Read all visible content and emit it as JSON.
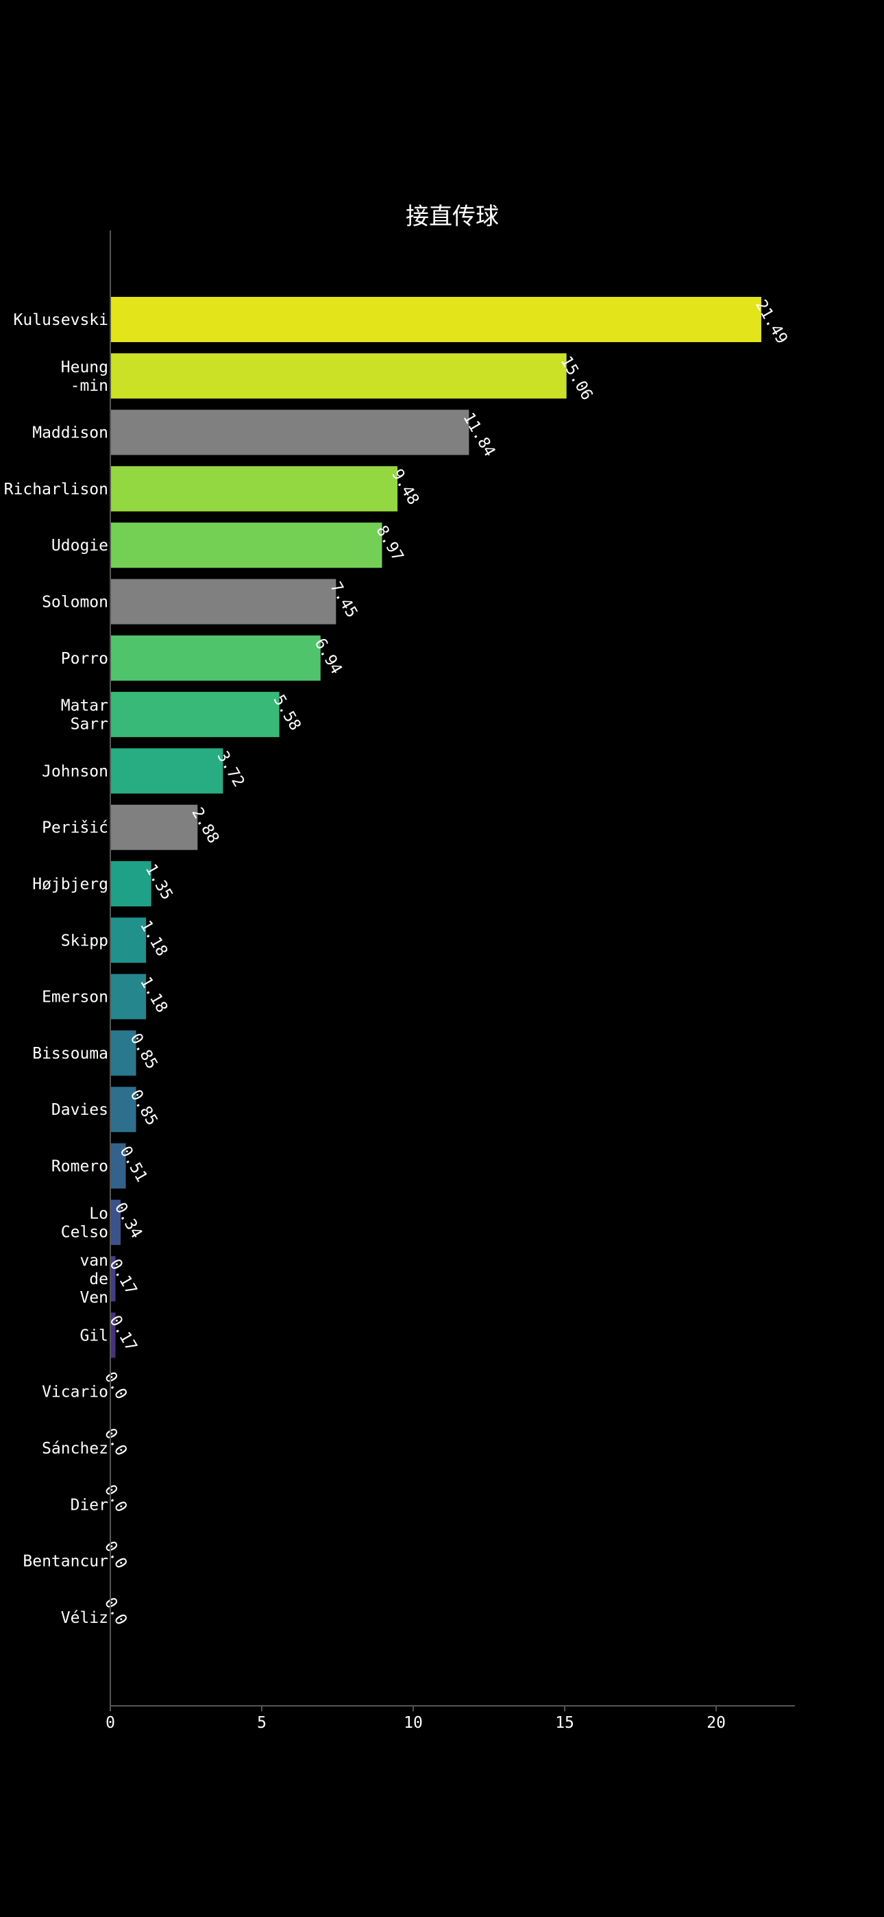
{
  "chart_data": {
    "type": "bar",
    "orientation": "horizontal",
    "title": "接直传球",
    "xlabel": "",
    "ylabel": "",
    "xlim": [
      0,
      22.6
    ],
    "x_ticks": [
      0,
      5,
      10,
      15,
      20
    ],
    "grid": false,
    "legend": "none",
    "background": "#000000",
    "categories": [
      "Kulusevski",
      "Heung\n-min",
      "Maddison",
      "Richarlison",
      "Udogie",
      "Solomon",
      "Porro",
      "Matar\nSarr",
      "Johnson",
      "Perišić",
      "Højbjerg",
      "Skipp",
      "Emerson",
      "Bissouma",
      "Davies",
      "Romero",
      "Lo\nCelso",
      "van\nde\nVen",
      "Gil",
      "Vicario",
      "Sánchez",
      "Dier",
      "Bentancur",
      "Véliz"
    ],
    "values": [
      21.49,
      15.06,
      11.84,
      9.48,
      8.97,
      7.45,
      6.94,
      5.58,
      3.72,
      2.88,
      1.35,
      1.18,
      1.18,
      0.85,
      0.85,
      0.51,
      0.34,
      0.17,
      0.17,
      0.0,
      0.0,
      0.0,
      0.0,
      0.0
    ],
    "value_labels": [
      "21.49",
      "15.06",
      "11.84",
      "9.48",
      "8.97",
      "7.45",
      "6.94",
      "5.58",
      "3.72",
      "2.88",
      "1.35",
      "1.18",
      "1.18",
      "0.85",
      "0.85",
      "0.51",
      "0.34",
      "0.17",
      "0.17",
      "0.0",
      "0.0",
      "0.0",
      "0.0",
      "0.0"
    ],
    "colors": [
      "#e4e41a",
      "#cbe125",
      "#808080",
      "#93d741",
      "#74d055",
      "#808080",
      "#50c46a",
      "#38b977",
      "#27ad81",
      "#808080",
      "#1fa187",
      "#21918c",
      "#25868e",
      "#2a788e",
      "#2e6f8e",
      "#33638d",
      "#3b528b",
      "#433e85",
      "#46337e",
      "#482979",
      "#48186a",
      "#471164",
      "#450a5c",
      "#440154"
    ]
  }
}
